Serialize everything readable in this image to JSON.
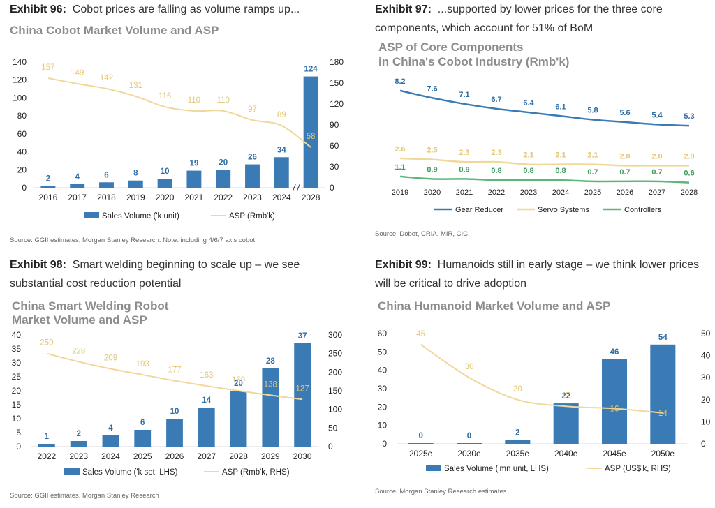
{
  "colors": {
    "bar": "#3b7bb5",
    "line": "#f1d89a",
    "line_label": "#e3c777",
    "value_label": "#2e6da4",
    "green": "#5cb87a"
  },
  "exhibits": [
    {
      "num": "Exhibit 96:",
      "text": "Cobot prices are falling as volume ramps up...",
      "source": "Source: GGII estimates, Morgan Stanley Research. Note: including 4/6/7 axis cobot"
    },
    {
      "num": "Exhibit 97:",
      "text": "...supported by lower prices for the three core components, which account for 51% of BoM",
      "source": "Source: Dobot, CRIA, MIR, CIC,"
    },
    {
      "num": "Exhibit 98:",
      "text": "Smart welding beginning to scale up – we see substantial cost reduction potential",
      "source": "Source: GGII estimates, Morgan Stanley Research"
    },
    {
      "num": "Exhibit 99:",
      "text": "Humanoids still in early stage – we think lower prices will be critical to drive adoption",
      "source": "Source: Morgan Stanley Research estimates"
    }
  ],
  "chart_data": [
    {
      "type": "bar+line",
      "title": "China Cobot Market Volume and ASP",
      "categories": [
        "2016",
        "2017",
        "2018",
        "2019",
        "2020",
        "2021",
        "2022",
        "2023",
        "2024",
        "2028"
      ],
      "axis_break_after": "2024",
      "series": [
        {
          "name": "Sales Volume ('k unit)",
          "kind": "bar",
          "axis": "left",
          "values": [
            2,
            4,
            6,
            8,
            10,
            19,
            20,
            26,
            34,
            124
          ]
        },
        {
          "name": "ASP (Rmb'k)",
          "kind": "line",
          "axis": "right",
          "values": [
            157,
            149,
            142,
            131,
            116,
            110,
            110,
            97,
            89,
            58
          ]
        }
      ],
      "ylim_left": [
        0,
        140
      ],
      "yticks_left": [
        0,
        20,
        40,
        60,
        80,
        100,
        120,
        140
      ],
      "ylim_right": [
        0,
        180
      ],
      "yticks_right": [
        0,
        30,
        60,
        90,
        120,
        150,
        180
      ]
    },
    {
      "type": "line",
      "title_lines": [
        "ASP of Core Components",
        "in China's Cobot Industry (Rmb'k)"
      ],
      "categories": [
        "2019",
        "2020",
        "2021",
        "2022",
        "2023",
        "2024",
        "2025",
        "2026",
        "2027",
        "2028"
      ],
      "series": [
        {
          "name": "Gear Reducer",
          "values": [
            8.2,
            7.6,
            7.1,
            6.7,
            6.4,
            6.1,
            5.8,
            5.6,
            5.4,
            5.3
          ],
          "color": "#3b7bb5",
          "label_color": "#2e6da4"
        },
        {
          "name": "Servo Systems",
          "values": [
            2.6,
            2.5,
            2.3,
            2.3,
            2.1,
            2.1,
            2.1,
            2.0,
            2.0,
            2.0
          ],
          "color": "#f1d89a",
          "label_color": "#e3c777"
        },
        {
          "name": "Controllers",
          "values": [
            1.1,
            0.9,
            0.9,
            0.8,
            0.8,
            0.8,
            0.7,
            0.7,
            0.7,
            0.6
          ],
          "color": "#5cb87a",
          "label_color": "#3e9a5c"
        }
      ],
      "ylim": [
        0,
        9
      ]
    },
    {
      "type": "bar+line",
      "title_lines": [
        "China Smart Welding Robot",
        "Market Volume and ASP"
      ],
      "categories": [
        "2022",
        "2023",
        "2024",
        "2025",
        "2026",
        "2027",
        "2028",
        "2029",
        "2030"
      ],
      "series": [
        {
          "name": "Sales Volume ('k set, LHS)",
          "kind": "bar",
          "axis": "left",
          "values": [
            1,
            2,
            4,
            6,
            10,
            14,
            20,
            28,
            37
          ]
        },
        {
          "name": "ASP (Rmb'k, RHS)",
          "kind": "line",
          "axis": "right",
          "values": [
            250,
            228,
            209,
            193,
            177,
            163,
            150,
            138,
            127
          ]
        }
      ],
      "ylim_left": [
        0,
        40
      ],
      "yticks_left": [
        0,
        5,
        10,
        15,
        20,
        25,
        30,
        35,
        40
      ],
      "ylim_right": [
        0,
        300
      ],
      "yticks_right": [
        0,
        50,
        100,
        150,
        200,
        250,
        300
      ]
    },
    {
      "type": "bar+line",
      "title": "China Humanoid Market Volume and ASP",
      "categories": [
        "2025e",
        "2030e",
        "2035e",
        "2040e",
        "2045e",
        "2050e"
      ],
      "series": [
        {
          "name": "Sales Volume ('mn unit, LHS)",
          "kind": "bar",
          "axis": "left",
          "values": [
            0,
            0,
            2,
            22,
            46,
            54
          ]
        },
        {
          "name": "ASP (US$'k, RHS)",
          "kind": "line",
          "axis": "right",
          "values": [
            45,
            30,
            20,
            17,
            16,
            14
          ]
        }
      ],
      "ylim_left": [
        0,
        60
      ],
      "yticks_left": [
        0,
        10,
        20,
        30,
        40,
        50,
        60
      ],
      "ylim_right": [
        0,
        50
      ],
      "yticks_right": [
        0,
        10,
        20,
        30,
        40,
        50
      ]
    }
  ]
}
